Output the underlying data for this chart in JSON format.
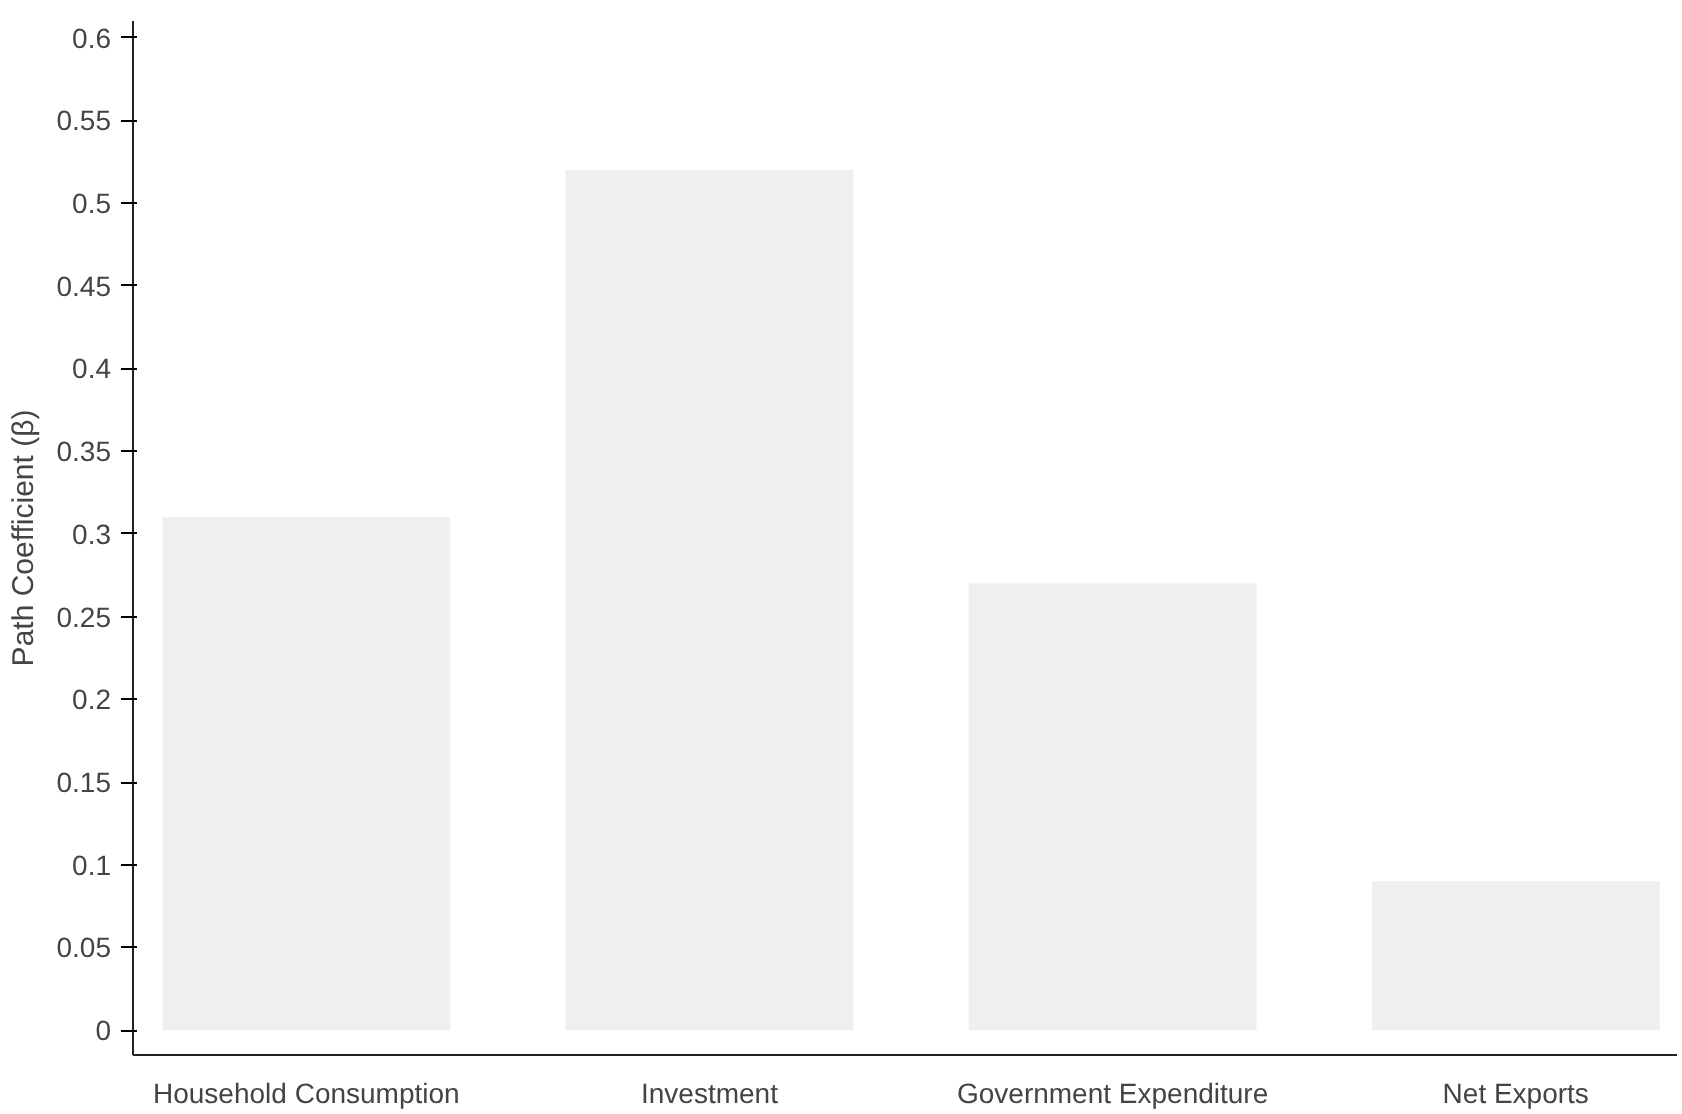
{
  "chart_data": {
    "type": "bar",
    "ylabel": "Path Coefficient (β)",
    "categories": [
      "Household Consumption",
      "Investment",
      "Government Expenditure",
      "Net Exports"
    ],
    "values": [
      0.31,
      0.52,
      0.27,
      0.09
    ],
    "color": "#efefef",
    "ylim": [
      -0.015,
      0.61
    ],
    "yticks": [
      0,
      0.05,
      0.1,
      0.15,
      0.2,
      0.25,
      0.3,
      0.35,
      0.4,
      0.45,
      0.5,
      0.55,
      0.6
    ],
    "grid": false
  }
}
